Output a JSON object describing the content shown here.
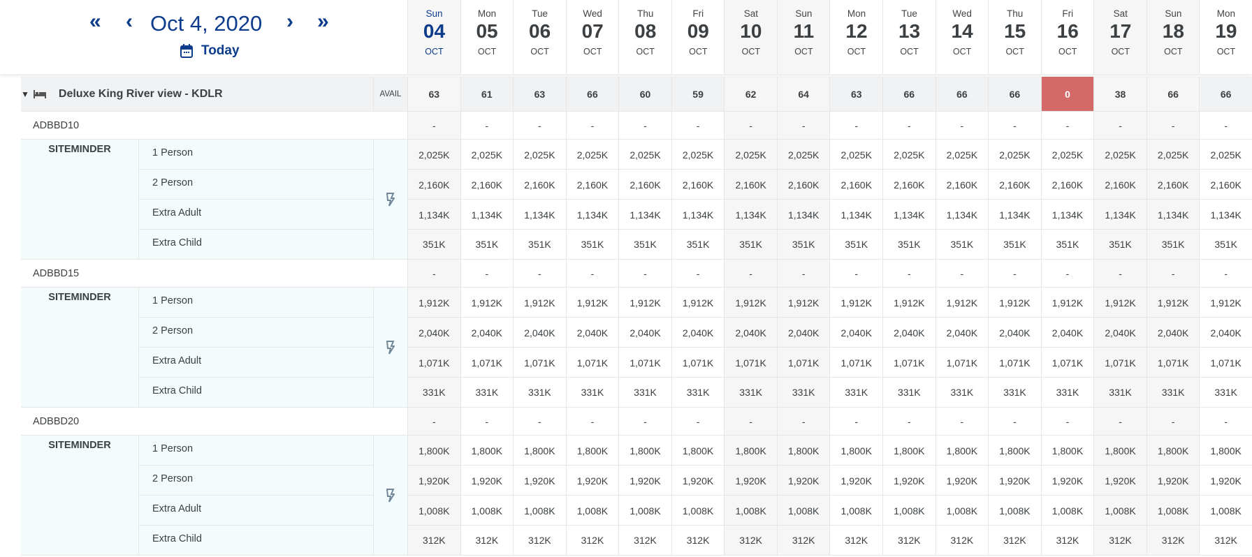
{
  "nav": {
    "first": "«",
    "prev": "‹",
    "date": "Oct 4, 2020",
    "next": "›",
    "last": "»",
    "today": "Today"
  },
  "days": [
    {
      "dow": "Sun",
      "day": "04",
      "mon": "OCT",
      "today": true,
      "weekend": true
    },
    {
      "dow": "Mon",
      "day": "05",
      "mon": "OCT"
    },
    {
      "dow": "Tue",
      "day": "06",
      "mon": "OCT"
    },
    {
      "dow": "Wed",
      "day": "07",
      "mon": "OCT"
    },
    {
      "dow": "Thu",
      "day": "08",
      "mon": "OCT"
    },
    {
      "dow": "Fri",
      "day": "09",
      "mon": "OCT"
    },
    {
      "dow": "Sat",
      "day": "10",
      "mon": "OCT",
      "weekend": true
    },
    {
      "dow": "Sun",
      "day": "11",
      "mon": "OCT",
      "weekend": true
    },
    {
      "dow": "Mon",
      "day": "12",
      "mon": "OCT"
    },
    {
      "dow": "Tue",
      "day": "13",
      "mon": "OCT"
    },
    {
      "dow": "Wed",
      "day": "14",
      "mon": "OCT"
    },
    {
      "dow": "Thu",
      "day": "15",
      "mon": "OCT"
    },
    {
      "dow": "Fri",
      "day": "16",
      "mon": "OCT"
    },
    {
      "dow": "Sat",
      "day": "17",
      "mon": "OCT",
      "weekend": true
    },
    {
      "dow": "Sun",
      "day": "18",
      "mon": "OCT",
      "weekend": true
    },
    {
      "dow": "Mon",
      "day": "19",
      "mon": "OCT"
    }
  ],
  "room": {
    "name": "Deluxe King River view - KDLR",
    "avail_label": "AVAIL",
    "avail": [
      "63",
      "61",
      "63",
      "66",
      "60",
      "59",
      "62",
      "64",
      "63",
      "66",
      "66",
      "66",
      "0",
      "38",
      "66",
      "66"
    ],
    "soldout_color": "#d46a68"
  },
  "plans": [
    {
      "code": "ADBBD10",
      "values": [
        "-",
        "-",
        "-",
        "-",
        "-",
        "-",
        "-",
        "-",
        "-",
        "-",
        "-",
        "-",
        "-",
        "-",
        "-",
        "-"
      ],
      "channel": "SITEMINDER",
      "rates": [
        {
          "label": "1 Person",
          "value": "2,025K"
        },
        {
          "label": "2 Person",
          "value": "2,160K"
        },
        {
          "label": "Extra Adult",
          "value": "1,134K"
        },
        {
          "label": "Extra Child",
          "value": "351K"
        }
      ]
    },
    {
      "code": "ADBBD15",
      "values": [
        "-",
        "-",
        "-",
        "-",
        "-",
        "-",
        "-",
        "-",
        "-",
        "-",
        "-",
        "-",
        "-",
        "-",
        "-",
        "-"
      ],
      "channel": "SITEMINDER",
      "rates": [
        {
          "label": "1 Person",
          "value": "1,912K"
        },
        {
          "label": "2 Person",
          "value": "2,040K"
        },
        {
          "label": "Extra Adult",
          "value": "1,071K"
        },
        {
          "label": "Extra Child",
          "value": "331K"
        }
      ]
    },
    {
      "code": "ADBBD20",
      "values": [
        "-",
        "-",
        "-",
        "-",
        "-",
        "-",
        "-",
        "-",
        "-",
        "-",
        "-",
        "-",
        "-",
        "-",
        "-",
        "-"
      ],
      "channel": "SITEMINDER",
      "rates": [
        {
          "label": "1 Person",
          "value": "1,800K"
        },
        {
          "label": "2 Person",
          "value": "1,920K"
        },
        {
          "label": "Extra Adult",
          "value": "1,008K"
        },
        {
          "label": "Extra Child",
          "value": "312K"
        }
      ]
    }
  ],
  "colors": {
    "accent": "#0d3c8c",
    "rate_bg": "#f3fbfd",
    "weekend_bg": "#f6f6f6"
  }
}
